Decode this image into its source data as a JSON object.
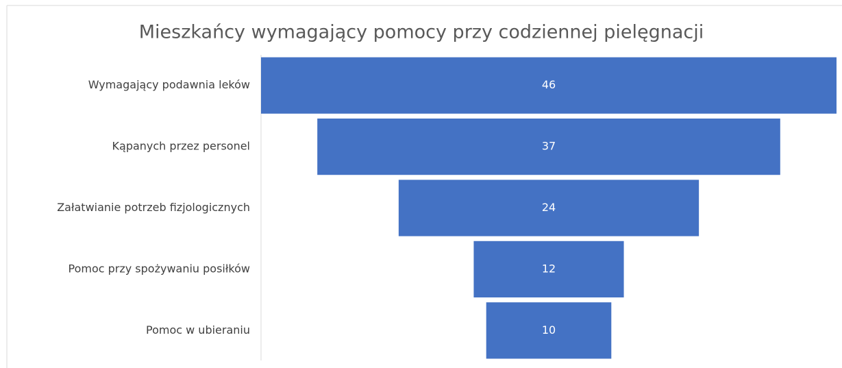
{
  "chart_data": {
    "type": "funnel",
    "title": "Mieszkańcy wymagający pomocy przy codziennej pielęgnacji",
    "categories": [
      "Wymagający podawnia leków",
      "Kąpanych przez personel",
      "Załatwianie potrzeb fizjologicznych",
      "Pomoc przy spożywaniu posiłków",
      "Pomoc w ubieraniu"
    ],
    "values": [
      46,
      37,
      24,
      12,
      10
    ],
    "color": "#4472c4"
  }
}
